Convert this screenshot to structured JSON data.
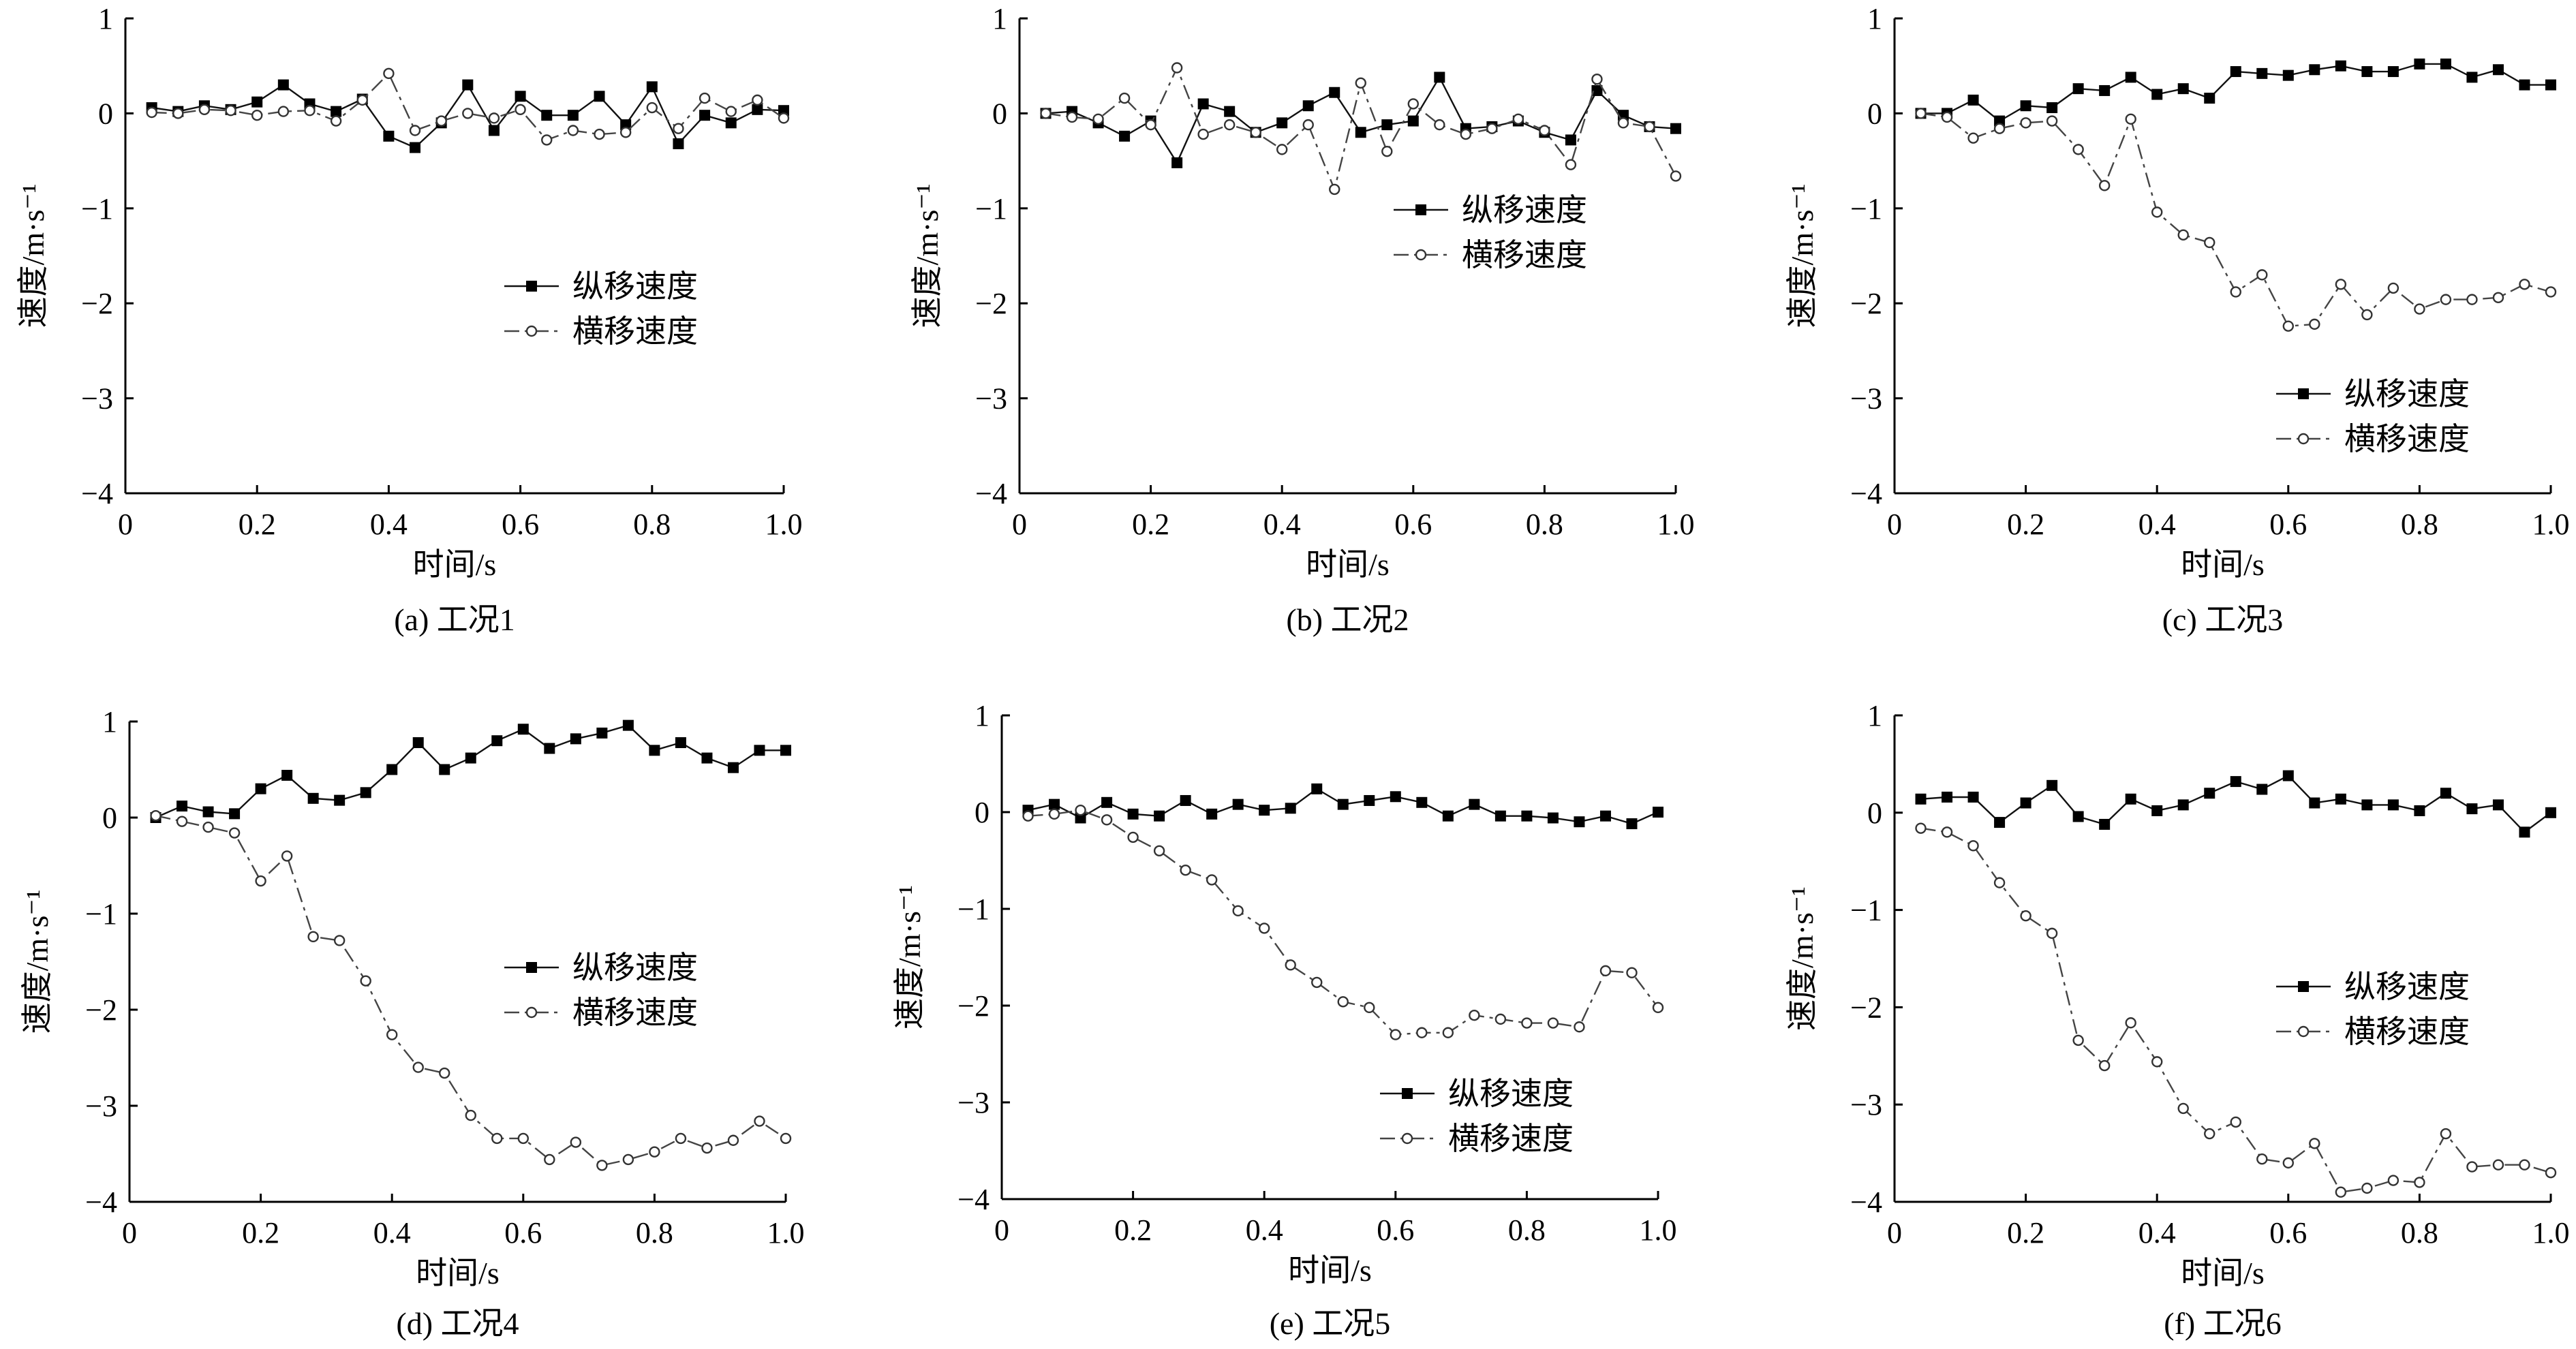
{
  "chart_data": [
    {
      "type": "line",
      "caption": "(a) 工况1",
      "xlabel": "时间/s",
      "ylabel": "速度/m·s⁻¹",
      "xlim": [
        0,
        1.0
      ],
      "ylim": [
        -4,
        1
      ],
      "xticks": [
        "0",
        "0.2",
        "0.4",
        "0.6",
        "0.8",
        "1.0"
      ],
      "yticks": [
        "1",
        "0",
        "−1",
        "−2",
        "−3",
        "−4"
      ],
      "legend_position": "middle-right",
      "series": [
        {
          "name": "纵移速度",
          "marker": "filled-square",
          "x": [
            0.04,
            0.08,
            0.12,
            0.16,
            0.2,
            0.24,
            0.28,
            0.32,
            0.36,
            0.4,
            0.44,
            0.48,
            0.52,
            0.56,
            0.6,
            0.64,
            0.68,
            0.72,
            0.76,
            0.8,
            0.84,
            0.88,
            0.92,
            0.96,
            1.0
          ],
          "values": [
            0.06,
            0.02,
            0.08,
            0.04,
            0.12,
            0.3,
            0.1,
            0.02,
            0.15,
            -0.24,
            -0.36,
            -0.1,
            0.3,
            -0.18,
            0.18,
            -0.02,
            -0.02,
            0.18,
            -0.12,
            0.28,
            -0.32,
            -0.02,
            -0.1,
            0.04,
            0.03
          ]
        },
        {
          "name": "横移速度",
          "marker": "open-circle",
          "x": [
            0.04,
            0.08,
            0.12,
            0.16,
            0.2,
            0.24,
            0.28,
            0.32,
            0.36,
            0.4,
            0.44,
            0.48,
            0.52,
            0.56,
            0.6,
            0.64,
            0.68,
            0.72,
            0.76,
            0.8,
            0.84,
            0.88,
            0.92,
            0.96,
            1.0
          ],
          "values": [
            0.01,
            0.0,
            0.04,
            0.03,
            -0.02,
            0.02,
            0.03,
            -0.08,
            0.14,
            0.42,
            -0.18,
            -0.08,
            0.0,
            -0.05,
            0.04,
            -0.28,
            -0.18,
            -0.22,
            -0.2,
            0.06,
            -0.16,
            0.16,
            0.02,
            0.14,
            -0.05
          ]
        }
      ]
    },
    {
      "type": "line",
      "caption": "(b) 工况2",
      "xlabel": "时间/s",
      "ylabel": "速度/m·s⁻¹",
      "xlim": [
        0,
        1.0
      ],
      "ylim": [
        -4,
        1
      ],
      "xticks": [
        "0",
        "0.2",
        "0.4",
        "0.6",
        "0.8",
        "1.0"
      ],
      "yticks": [
        "1",
        "0",
        "−1",
        "−2",
        "−3",
        "−4"
      ],
      "legend_position": "upper-right",
      "series": [
        {
          "name": "纵移速度",
          "marker": "filled-square",
          "x": [
            0.04,
            0.08,
            0.12,
            0.16,
            0.2,
            0.24,
            0.28,
            0.32,
            0.36,
            0.4,
            0.44,
            0.48,
            0.52,
            0.56,
            0.6,
            0.64,
            0.68,
            0.72,
            0.76,
            0.8,
            0.84,
            0.88,
            0.92,
            0.96,
            1.0
          ],
          "values": [
            0.0,
            0.02,
            -0.1,
            -0.24,
            -0.08,
            -0.52,
            0.1,
            0.02,
            -0.2,
            -0.1,
            0.08,
            0.22,
            -0.2,
            -0.12,
            -0.08,
            0.38,
            -0.16,
            -0.14,
            -0.08,
            -0.2,
            -0.28,
            0.24,
            -0.02,
            -0.14,
            -0.16
          ]
        },
        {
          "name": "横移速度",
          "marker": "open-circle",
          "x": [
            0.04,
            0.08,
            0.12,
            0.16,
            0.2,
            0.24,
            0.28,
            0.32,
            0.36,
            0.4,
            0.44,
            0.48,
            0.52,
            0.56,
            0.6,
            0.64,
            0.68,
            0.72,
            0.76,
            0.8,
            0.84,
            0.88,
            0.92,
            0.96,
            1.0
          ],
          "values": [
            0.0,
            -0.04,
            -0.06,
            0.16,
            -0.12,
            0.48,
            -0.22,
            -0.12,
            -0.2,
            -0.38,
            -0.12,
            -0.8,
            0.32,
            -0.4,
            0.1,
            -0.12,
            -0.22,
            -0.16,
            -0.06,
            -0.18,
            -0.54,
            0.36,
            -0.1,
            -0.14,
            -0.66
          ]
        }
      ]
    },
    {
      "type": "line",
      "caption": "(c) 工况3",
      "xlabel": "时间/s",
      "ylabel": "速度/m·s⁻¹",
      "xlim": [
        0,
        1.0
      ],
      "ylim": [
        -4,
        1
      ],
      "xticks": [
        "0",
        "0.2",
        "0.4",
        "0.6",
        "0.8",
        "1.0"
      ],
      "yticks": [
        "1",
        "0",
        "−1",
        "−2",
        "−3",
        "−4"
      ],
      "legend_position": "lower-right",
      "series": [
        {
          "name": "纵移速度",
          "marker": "filled-square",
          "x": [
            0.04,
            0.08,
            0.12,
            0.16,
            0.2,
            0.24,
            0.28,
            0.32,
            0.36,
            0.4,
            0.44,
            0.48,
            0.52,
            0.56,
            0.6,
            0.64,
            0.68,
            0.72,
            0.76,
            0.8,
            0.84,
            0.88,
            0.92,
            0.96,
            1.0
          ],
          "values": [
            0.0,
            0.0,
            0.14,
            -0.08,
            0.08,
            0.06,
            0.26,
            0.24,
            0.38,
            0.2,
            0.26,
            0.16,
            0.44,
            0.42,
            0.4,
            0.46,
            0.5,
            0.44,
            0.44,
            0.52,
            0.52,
            0.38,
            0.46,
            0.3,
            0.3
          ]
        },
        {
          "name": "横移速度",
          "marker": "open-circle",
          "x": [
            0.04,
            0.08,
            0.12,
            0.16,
            0.2,
            0.24,
            0.28,
            0.32,
            0.36,
            0.4,
            0.44,
            0.48,
            0.52,
            0.56,
            0.6,
            0.64,
            0.68,
            0.72,
            0.76,
            0.8,
            0.84,
            0.88,
            0.92,
            0.96,
            1.0
          ],
          "values": [
            0.0,
            -0.04,
            -0.26,
            -0.16,
            -0.1,
            -0.08,
            -0.38,
            -0.76,
            -0.06,
            -1.04,
            -1.28,
            -1.36,
            -1.88,
            -1.7,
            -2.24,
            -2.22,
            -1.8,
            -2.12,
            -1.84,
            -2.06,
            -1.96,
            -1.96,
            -1.94,
            -1.8,
            -1.88
          ]
        }
      ]
    },
    {
      "type": "line",
      "caption": "(d) 工况4",
      "xlabel": "时间/s",
      "ylabel": "速度/m·s⁻¹",
      "xlim": [
        0,
        1.0
      ],
      "ylim": [
        -4,
        1
      ],
      "xticks": [
        "0",
        "0.2",
        "0.4",
        "0.6",
        "0.8",
        "1.0"
      ],
      "yticks": [
        "1",
        "0",
        "−1",
        "−2",
        "−3",
        "−4"
      ],
      "legend_position": "middle-right",
      "series": [
        {
          "name": "纵移速度",
          "marker": "filled-square",
          "x": [
            0.04,
            0.08,
            0.12,
            0.16,
            0.2,
            0.24,
            0.28,
            0.32,
            0.36,
            0.4,
            0.44,
            0.48,
            0.52,
            0.56,
            0.6,
            0.64,
            0.68,
            0.72,
            0.76,
            0.8,
            0.84,
            0.88,
            0.92,
            0.96,
            1.0
          ],
          "values": [
            0.0,
            0.12,
            0.06,
            0.04,
            0.3,
            0.44,
            0.2,
            0.18,
            0.26,
            0.5,
            0.78,
            0.5,
            0.62,
            0.8,
            0.92,
            0.72,
            0.82,
            0.88,
            0.96,
            0.7,
            0.78,
            0.62,
            0.52,
            0.7,
            0.7
          ]
        },
        {
          "name": "横移速度",
          "marker": "open-circle",
          "x": [
            0.04,
            0.08,
            0.12,
            0.16,
            0.2,
            0.24,
            0.28,
            0.32,
            0.36,
            0.4,
            0.44,
            0.48,
            0.52,
            0.56,
            0.6,
            0.64,
            0.68,
            0.72,
            0.76,
            0.8,
            0.84,
            0.88,
            0.92,
            0.96,
            1.0
          ],
          "values": [
            0.02,
            -0.04,
            -0.1,
            -0.16,
            -0.66,
            -0.4,
            -1.24,
            -1.28,
            -1.7,
            -2.26,
            -2.6,
            -2.66,
            -3.1,
            -3.34,
            -3.34,
            -3.56,
            -3.38,
            -3.62,
            -3.56,
            -3.48,
            -3.34,
            -3.44,
            -3.36,
            -3.16,
            -3.34
          ]
        }
      ]
    },
    {
      "type": "line",
      "caption": "(e) 工况5",
      "xlabel": "时间/s",
      "ylabel": "速度/m·s⁻¹",
      "xlim": [
        0,
        1.0
      ],
      "ylim": [
        -4,
        1
      ],
      "xticks": [
        "0",
        "0.2",
        "0.4",
        "0.6",
        "0.8",
        "1.0"
      ],
      "yticks": [
        "1",
        "0",
        "−1",
        "−2",
        "−3",
        "−4"
      ],
      "legend_position": "lower-right",
      "series": [
        {
          "name": "纵移速度",
          "marker": "filled-square",
          "x": [
            0.04,
            0.08,
            0.12,
            0.16,
            0.2,
            0.24,
            0.28,
            0.32,
            0.36,
            0.4,
            0.44,
            0.48,
            0.52,
            0.56,
            0.6,
            0.64,
            0.68,
            0.72,
            0.76,
            0.8,
            0.84,
            0.88,
            0.92,
            0.96,
            1.0
          ],
          "values": [
            0.02,
            0.08,
            -0.06,
            0.1,
            -0.02,
            -0.04,
            0.12,
            -0.02,
            0.08,
            0.02,
            0.04,
            0.24,
            0.08,
            0.12,
            0.16,
            0.1,
            -0.04,
            0.08,
            -0.04,
            -0.04,
            -0.06,
            -0.1,
            -0.04,
            -0.12,
            0.0
          ]
        },
        {
          "name": "横移速度",
          "marker": "open-circle",
          "x": [
            0.04,
            0.08,
            0.12,
            0.16,
            0.2,
            0.24,
            0.28,
            0.32,
            0.36,
            0.4,
            0.44,
            0.48,
            0.52,
            0.56,
            0.6,
            0.64,
            0.68,
            0.72,
            0.76,
            0.8,
            0.84,
            0.88,
            0.92,
            0.96,
            1.0
          ],
          "values": [
            -0.04,
            -0.02,
            0.02,
            -0.08,
            -0.26,
            -0.4,
            -0.6,
            -0.7,
            -1.02,
            -1.2,
            -1.58,
            -1.76,
            -1.96,
            -2.02,
            -2.3,
            -2.28,
            -2.28,
            -2.1,
            -2.14,
            -2.18,
            -2.18,
            -2.22,
            -1.64,
            -1.66,
            -2.02
          ]
        }
      ]
    },
    {
      "type": "line",
      "caption": "(f) 工况6",
      "xlabel": "时间/s",
      "ylabel": "速度/m·s⁻¹",
      "xlim": [
        0,
        1.0
      ],
      "ylim": [
        -4,
        1
      ],
      "xticks": [
        "0",
        "0.2",
        "0.4",
        "0.6",
        "0.8",
        "1.0"
      ],
      "yticks": [
        "1",
        "0",
        "−1",
        "−2",
        "−3",
        "−4"
      ],
      "legend_position": "middle-right",
      "series": [
        {
          "name": "纵移速度",
          "marker": "filled-square",
          "x": [
            0.04,
            0.08,
            0.12,
            0.16,
            0.2,
            0.24,
            0.28,
            0.32,
            0.36,
            0.4,
            0.44,
            0.48,
            0.52,
            0.56,
            0.6,
            0.64,
            0.68,
            0.72,
            0.76,
            0.8,
            0.84,
            0.88,
            0.92,
            0.96,
            1.0
          ],
          "values": [
            0.14,
            0.16,
            0.16,
            -0.1,
            0.1,
            0.28,
            -0.04,
            -0.12,
            0.14,
            0.02,
            0.08,
            0.2,
            0.32,
            0.24,
            0.38,
            0.1,
            0.14,
            0.08,
            0.08,
            0.02,
            0.2,
            0.04,
            0.08,
            -0.2,
            0.0
          ]
        },
        {
          "name": "横移速度",
          "marker": "open-circle",
          "x": [
            0.04,
            0.08,
            0.12,
            0.16,
            0.2,
            0.24,
            0.28,
            0.32,
            0.36,
            0.4,
            0.44,
            0.48,
            0.52,
            0.56,
            0.6,
            0.64,
            0.68,
            0.72,
            0.76,
            0.8,
            0.84,
            0.88,
            0.92,
            0.96,
            1.0
          ],
          "values": [
            -0.16,
            -0.2,
            -0.34,
            -0.72,
            -1.06,
            -1.24,
            -2.34,
            -2.6,
            -2.16,
            -2.56,
            -3.04,
            -3.3,
            -3.18,
            -3.56,
            -3.6,
            -3.4,
            -3.9,
            -3.86,
            -3.78,
            -3.8,
            -3.3,
            -3.64,
            -3.62,
            -3.62,
            -3.7
          ]
        }
      ]
    }
  ]
}
